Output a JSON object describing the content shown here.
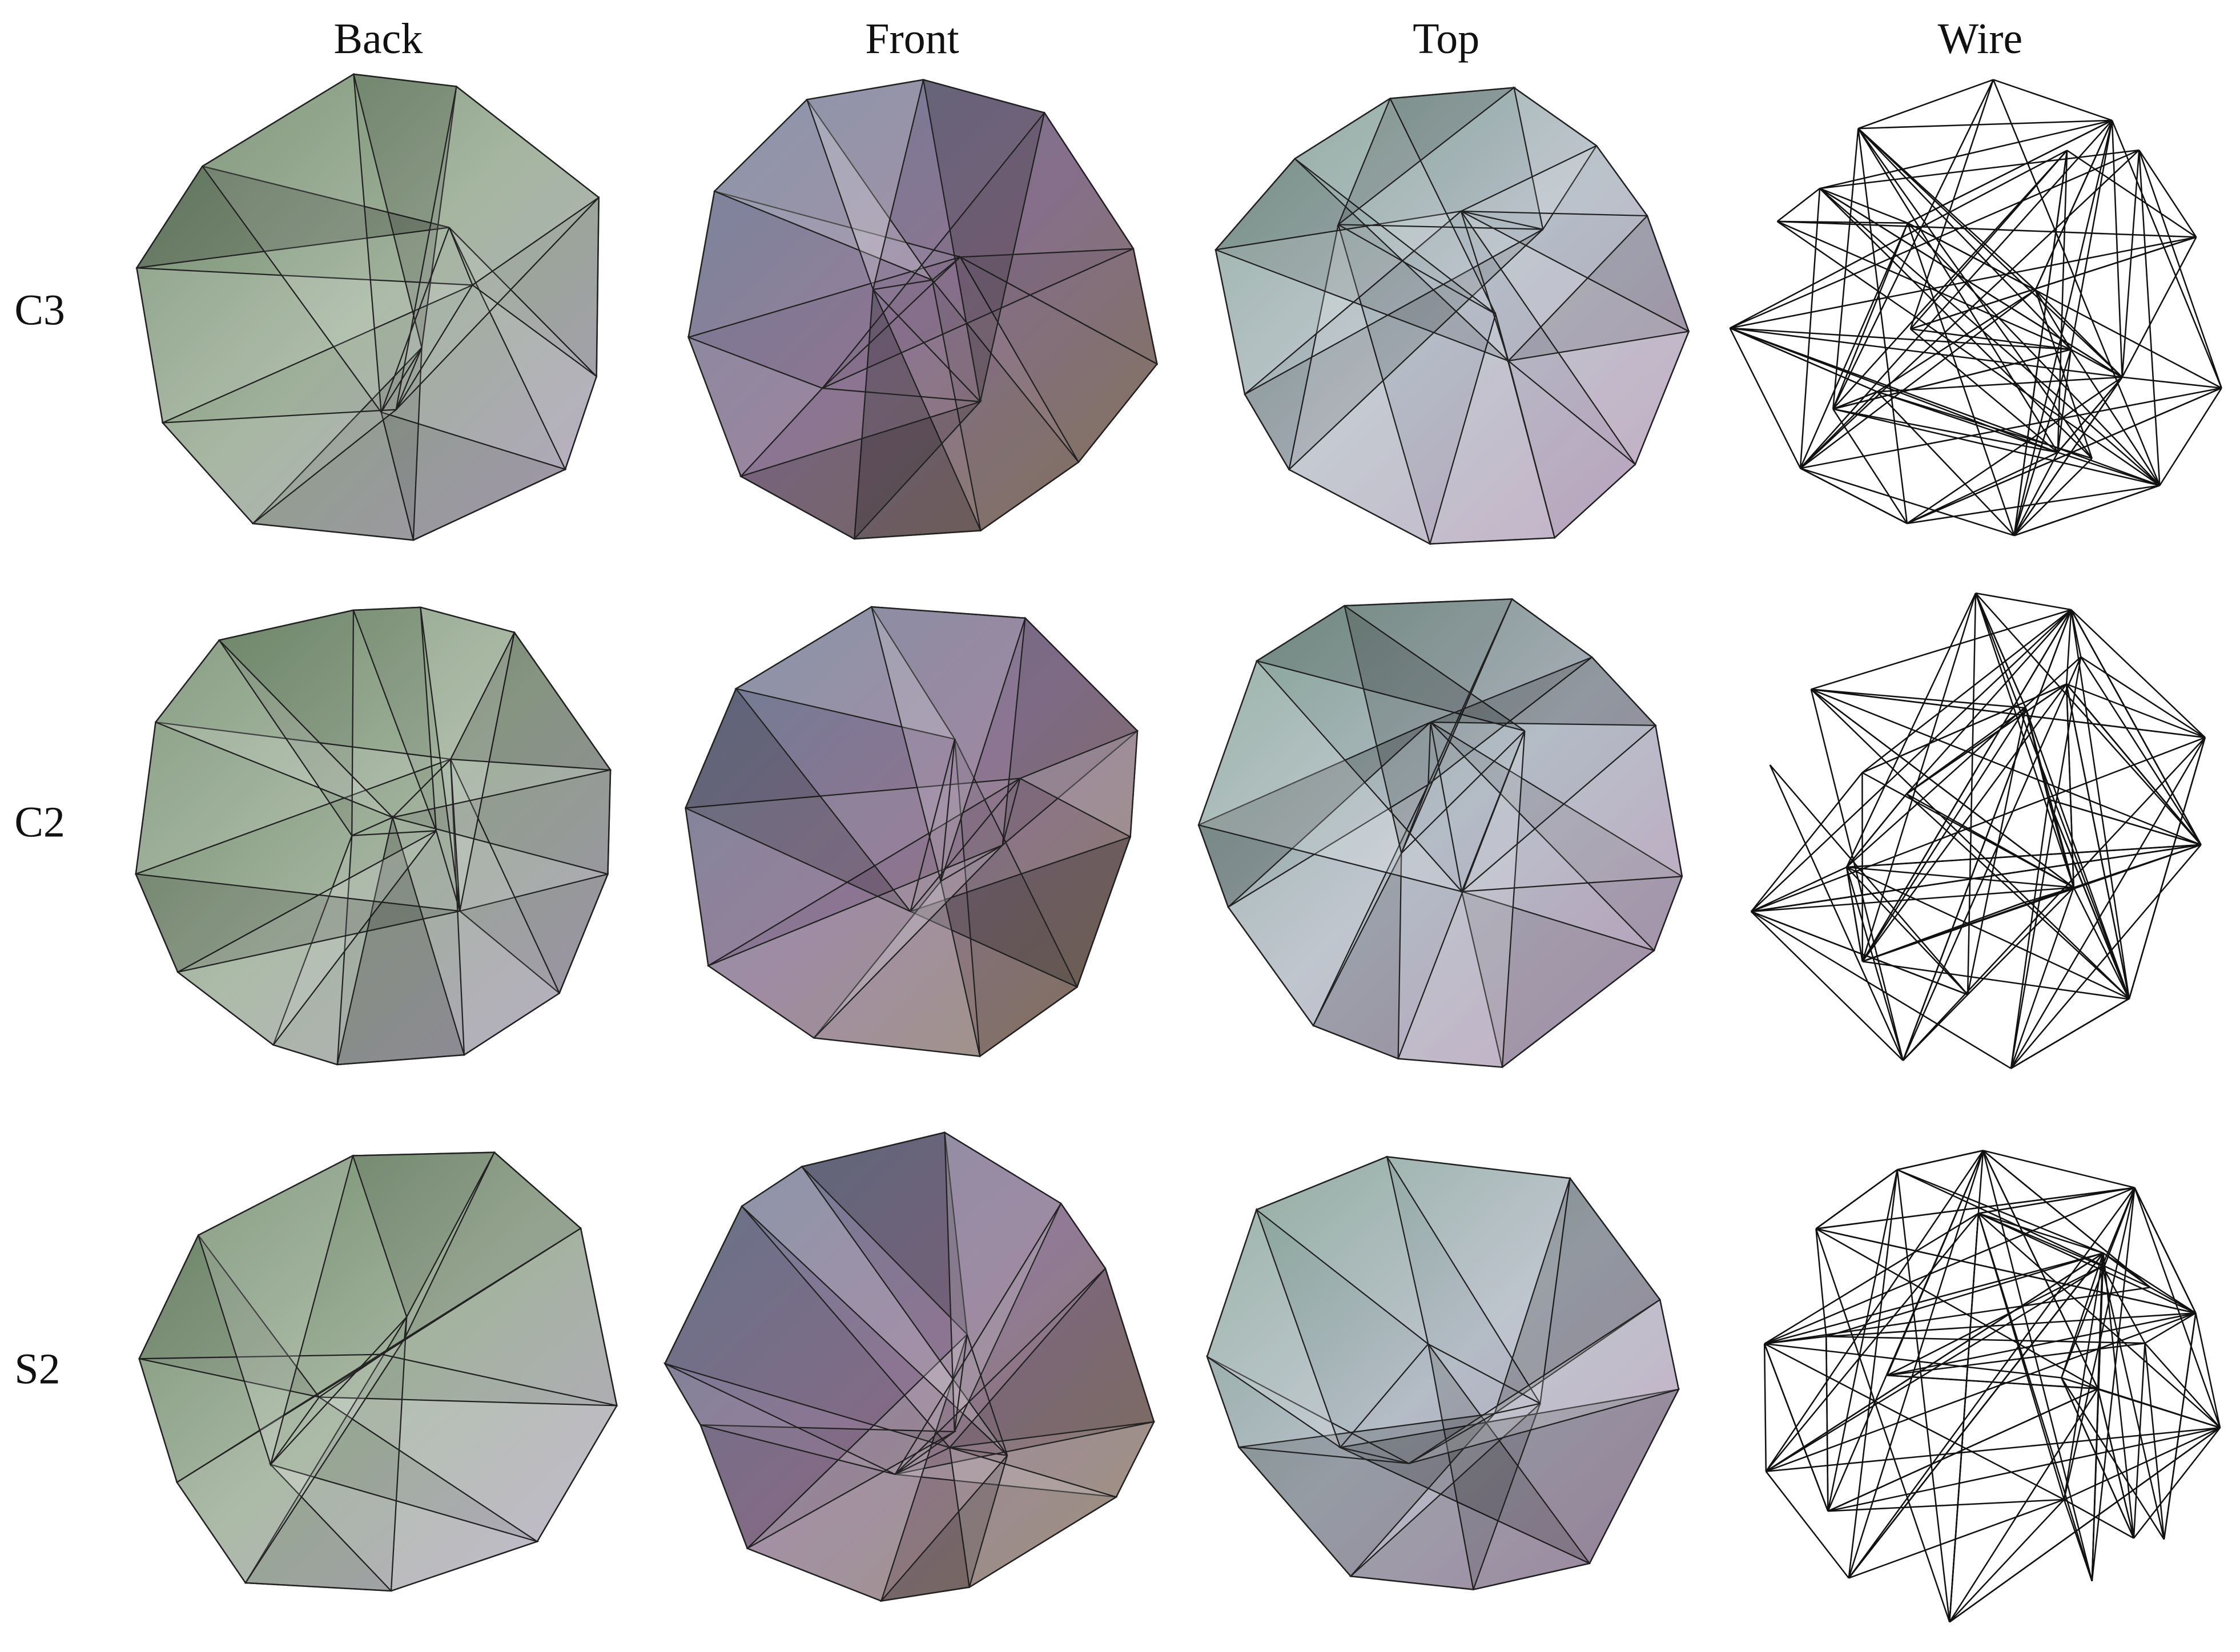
{
  "columns": [
    "Back",
    "Front",
    "Top",
    "Wire"
  ],
  "rows": [
    "C3",
    "C2",
    "S2"
  ]
}
